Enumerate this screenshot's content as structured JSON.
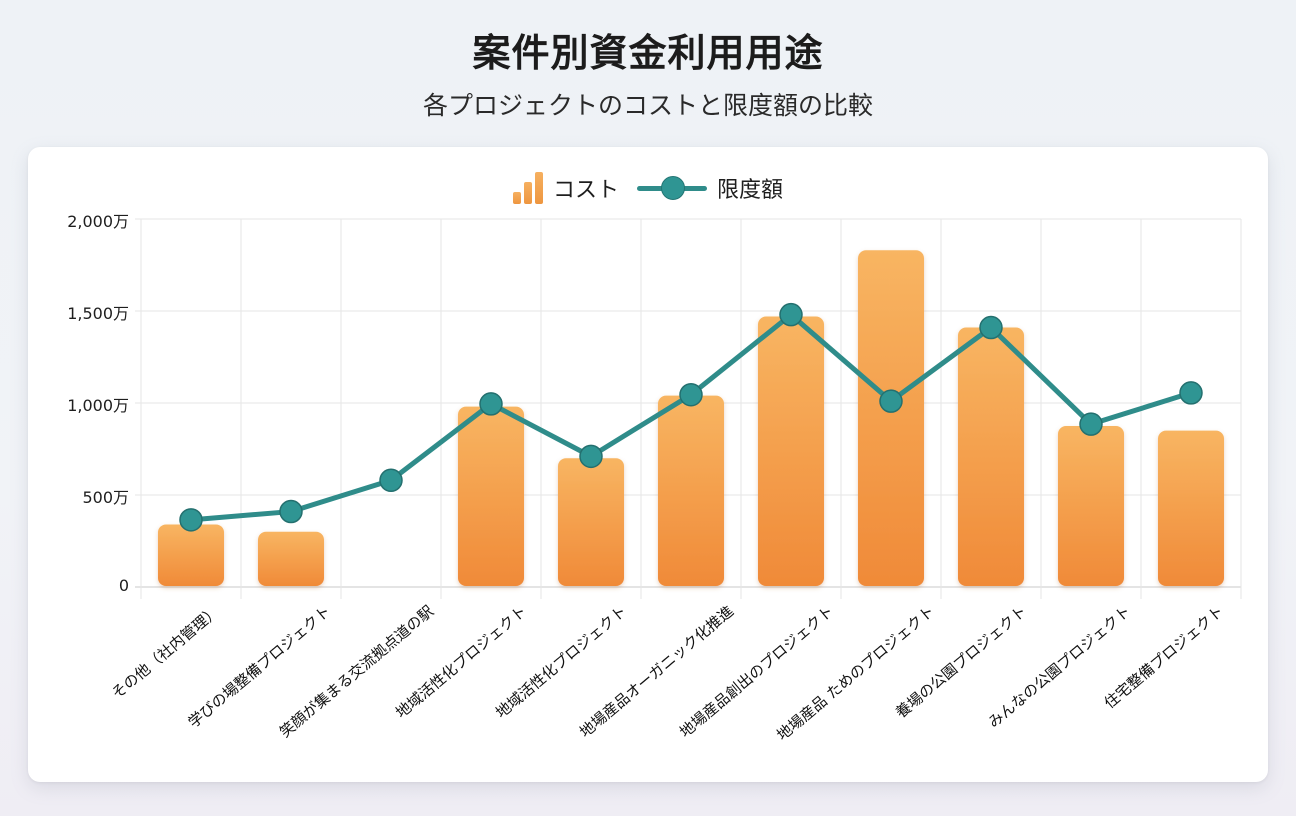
{
  "header": {
    "title": "案件別資金利用用途",
    "subtitle": "各プロジェクトのコストと限度額の比較"
  },
  "legend": {
    "items": [
      {
        "label": "コスト",
        "icon": "bar-chart-icon",
        "color": "#F0A050"
      },
      {
        "label": "限度額",
        "icon": "line-marker-icon",
        "color": "#2F8C8A"
      }
    ]
  },
  "axis": {
    "y_ticks": [
      "2,000万",
      "1,500万",
      "1,000万",
      "500万",
      "0"
    ]
  },
  "chart_data": {
    "type": "bar",
    "title": "案件別資金利用用途",
    "subtitle": "各プロジェクトのコストと限度額の比較",
    "xlabel": "",
    "ylabel": "",
    "y_unit": "万",
    "ylim": [
      0,
      2000
    ],
    "y_ticks": [
      0,
      500,
      1000,
      1500,
      2000
    ],
    "grid": true,
    "legend_position": "top",
    "categories": [
      "その他（社内管理）",
      "学びの場整備プロジェクト",
      "笑顔が集まる交流拠点道の駅",
      "地域活性化プロジェクト",
      "地域活性化プロジェクト",
      "地場産品オーガニック化推進",
      "地場産品創出のプロジェクト",
      "地場産品 ためのプロジェクト",
      "養場の公園プロジェクト",
      "みんなの公園プロジェクト",
      "住宅整備プロジェクト"
    ],
    "series": [
      {
        "name": "コスト",
        "type": "bar",
        "color": "#F0A050",
        "values": [
          340,
          300,
          0,
          980,
          700,
          1040,
          1470,
          1830,
          1410,
          875,
          850
        ]
      },
      {
        "name": "限度額",
        "type": "line",
        "color": "#2F8C8A",
        "values": [
          365,
          410,
          580,
          995,
          710,
          1045,
          1480,
          1010,
          1410,
          885,
          1055
        ]
      }
    ]
  }
}
